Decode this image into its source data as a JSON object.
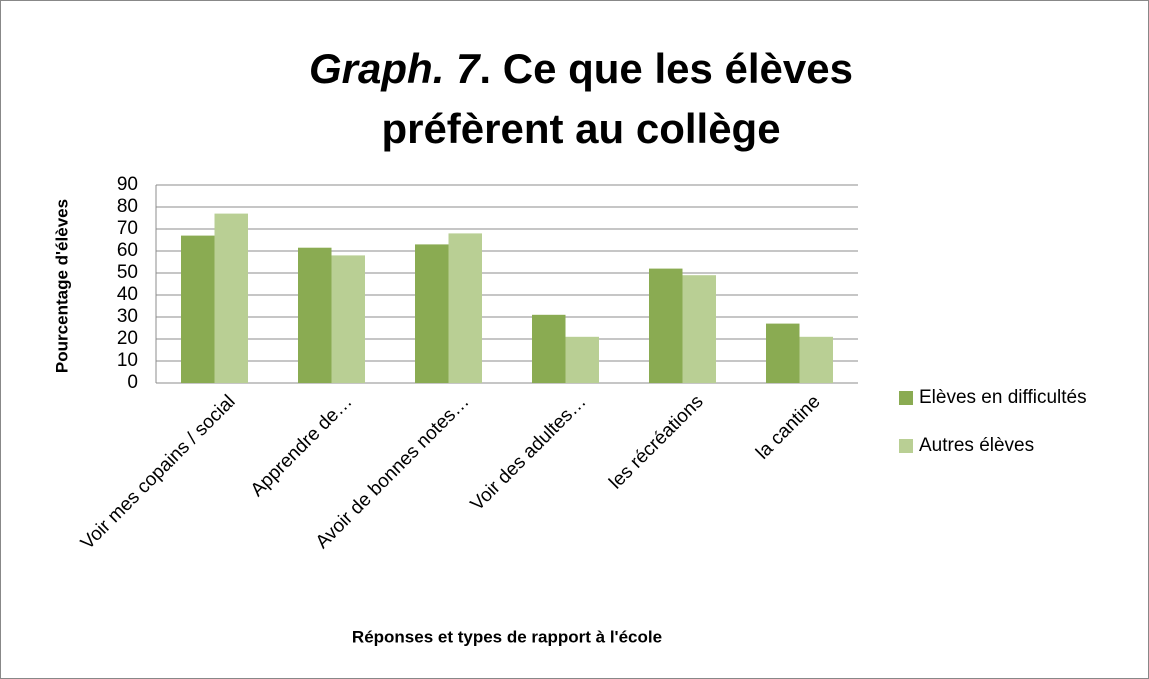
{
  "chart_data": {
    "type": "bar",
    "title_parts": [
      {
        "text": "Graph. 7",
        "italic": true
      },
      {
        "text": ". Ce que les élèves préfèrent au collège",
        "italic": false
      }
    ],
    "categories": [
      "Voir mes copains / social",
      "Apprendre de…",
      "Avoir de bonnes notes…",
      "Voir des adultes…",
      "les récréations",
      "la cantine"
    ],
    "series": [
      {
        "name": "Elèves en difficultés",
        "color": "#8aab52",
        "values": [
          67,
          61.5,
          63,
          31,
          52,
          27
        ]
      },
      {
        "name": "Autres élèves",
        "color": "#b9cf94",
        "values": [
          77,
          58,
          68,
          21,
          49,
          21
        ]
      }
    ],
    "ylim": [
      0,
      90
    ],
    "yticks": [
      0,
      10,
      20,
      30,
      40,
      50,
      60,
      70,
      80,
      90
    ],
    "ylabel": "Pourcentage d'élèves",
    "xlabel": "Réponses et types de rapport à l'école",
    "grid": true,
    "legend": "right"
  }
}
